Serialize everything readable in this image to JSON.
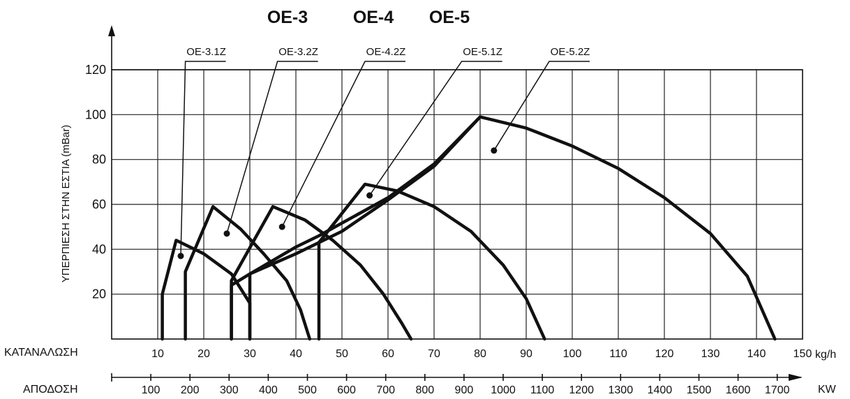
{
  "chart_data": {
    "type": "line",
    "title_groups": [
      "OE-3",
      "OE-4",
      "OE-5"
    ],
    "ylabel": "ΥΠΕΡΠΙΕΣΗ ΣΤΗΝ ΕΣΤΙΑ (mBar)",
    "ylim": [
      0,
      120
    ],
    "y_ticks": [
      "20",
      "40",
      "60",
      "80",
      "100",
      "120"
    ],
    "xlim": [
      0,
      150
    ],
    "x_row_label": "ΚΑΤΑΝΑΛΩΣΗ",
    "x_unit": "kg/h",
    "x_ticks": [
      "10",
      "20",
      "30",
      "40",
      "50",
      "60",
      "70",
      "80",
      "90",
      "100",
      "110",
      "120",
      "130",
      "140",
      "150"
    ],
    "x2_row_label": "ΑΠΟΔΟΣΗ",
    "x2_unit": "KW",
    "x2_ticks": [
      {
        "label": "100",
        "at": 8.5
      },
      {
        "label": "200",
        "at": 17
      },
      {
        "label": "300",
        "at": 25.5
      },
      {
        "label": "400",
        "at": 34
      },
      {
        "label": "500",
        "at": 42.5
      },
      {
        "label": "600",
        "at": 51
      },
      {
        "label": "700",
        "at": 59.5
      },
      {
        "label": "800",
        "at": 68
      },
      {
        "label": "900",
        "at": 76.5
      },
      {
        "label": "1000",
        "at": 85
      },
      {
        "label": "1100",
        "at": 93.5
      },
      {
        "label": "1200",
        "at": 102
      },
      {
        "label": "1300",
        "at": 110.5
      },
      {
        "label": "1400",
        "at": 119
      },
      {
        "label": "1500",
        "at": 127.5
      },
      {
        "label": "1600",
        "at": 136
      },
      {
        "label": "1700",
        "at": 144.5
      }
    ],
    "grid": true,
    "series": [
      {
        "name": "OE-3.1Z",
        "points": [
          [
            11,
            0
          ],
          [
            11,
            20
          ],
          [
            14,
            44
          ],
          [
            20,
            38
          ],
          [
            26,
            29
          ],
          [
            30,
            16
          ],
          [
            30,
            0
          ]
        ],
        "marker": [
          15,
          37
        ],
        "label_anchor": [
          16,
          125
        ]
      },
      {
        "name": "OE-3.2Z",
        "points": [
          [
            16,
            0
          ],
          [
            16,
            30
          ],
          [
            22,
            59
          ],
          [
            28,
            49
          ],
          [
            33,
            38
          ],
          [
            38,
            26
          ],
          [
            41,
            13
          ],
          [
            43,
            0
          ]
        ],
        "marker": [
          25,
          47
        ],
        "label_anchor": [
          36,
          125
        ]
      },
      {
        "name": "OE-4.2Z",
        "points": [
          [
            26,
            0
          ],
          [
            26,
            26
          ],
          [
            35,
            59
          ],
          [
            42,
            53
          ],
          [
            48,
            44
          ],
          [
            54,
            33
          ],
          [
            59,
            20
          ],
          [
            63,
            7
          ],
          [
            65,
            0
          ]
        ],
        "marker": [
          37,
          50
        ],
        "label_anchor": [
          55,
          125
        ]
      },
      {
        "name": "OE-5.1Z",
        "points": [
          [
            45,
            0
          ],
          [
            45,
            43
          ],
          [
            55,
            69
          ],
          [
            62,
            66
          ],
          [
            70,
            59
          ],
          [
            78,
            48
          ],
          [
            85,
            33
          ],
          [
            90,
            18
          ],
          [
            94,
            0
          ]
        ],
        "marker": [
          56,
          64
        ],
        "label_anchor": [
          76,
          125
        ]
      },
      {
        "name": "OE-5.2Z",
        "points": [
          [
            80,
            99
          ],
          [
            90,
            94
          ],
          [
            100,
            86
          ],
          [
            110,
            76
          ],
          [
            120,
            63
          ],
          [
            130,
            47
          ],
          [
            138,
            28
          ],
          [
            144,
            0
          ]
        ],
        "marker": [
          83,
          84
        ],
        "label_anchor": [
          95,
          125
        ]
      },
      {
        "name": "",
        "points": [
          [
            26,
            0
          ],
          [
            26,
            24
          ],
          [
            30,
            29
          ],
          [
            40,
            41
          ],
          [
            45,
            46
          ],
          [
            60,
            63
          ],
          [
            70,
            78
          ],
          [
            80,
            99
          ]
        ]
      },
      {
        "name": "",
        "points": [
          [
            30,
            0
          ],
          [
            30,
            29
          ],
          [
            40,
            38
          ],
          [
            50,
            48
          ],
          [
            60,
            62
          ],
          [
            70,
            77
          ],
          [
            80,
            99
          ]
        ]
      }
    ]
  }
}
